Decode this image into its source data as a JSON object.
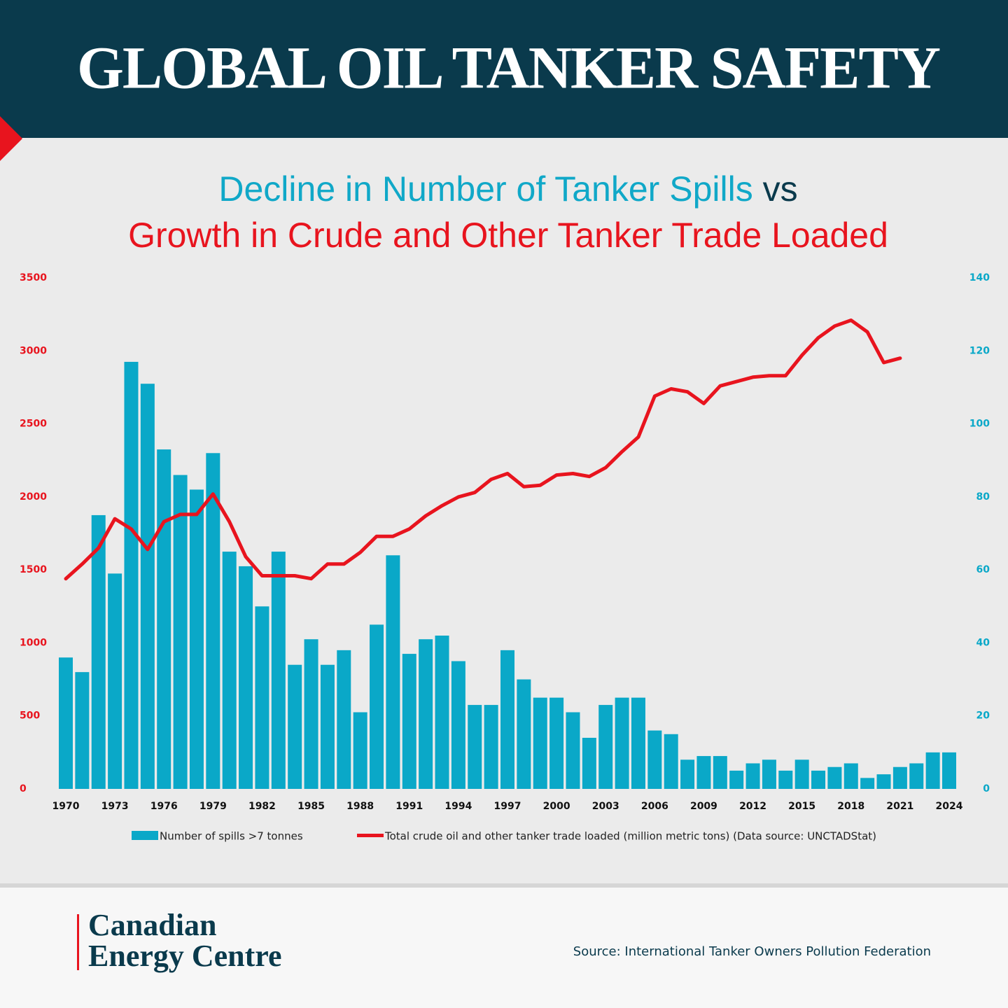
{
  "chart_data": {
    "type": "bar",
    "title": "GLOBAL OIL TANKER SAFETY",
    "subtitle": {
      "line1": [
        "Decline in Number of Tanker Spills",
        "vs"
      ],
      "line2": "Growth in Crude and Other Tanker Trade Loaded"
    },
    "categories": [
      "1970",
      null,
      null,
      "1973",
      null,
      null,
      "1976",
      null,
      null,
      "1979",
      null,
      null,
      "1982",
      null,
      null,
      "1985",
      null,
      null,
      "1988",
      null,
      null,
      "1991",
      null,
      null,
      "1994",
      null,
      null,
      "1997",
      null,
      null,
      "2000",
      null,
      null,
      "2003",
      null,
      null,
      "2006",
      null,
      null,
      "2009",
      null,
      null,
      "2012",
      null,
      null,
      "2015",
      null,
      null,
      "2018",
      null,
      null,
      "2021",
      null,
      null,
      "2024"
    ],
    "series": [
      {
        "name": "Number of spills >7 tonnes",
        "type": "bar",
        "axis": "y2",
        "color": "#0aa8c8",
        "values": [
          36,
          32,
          75,
          59,
          117,
          111,
          93,
          86,
          82,
          92,
          65,
          61,
          50,
          65,
          34,
          41,
          34,
          38,
          21,
          45,
          64,
          37,
          41,
          42,
          35,
          23,
          23,
          38,
          30,
          25,
          25,
          21,
          14,
          23,
          25,
          25,
          16,
          15,
          8,
          9,
          9,
          5,
          7,
          8,
          5,
          8,
          5,
          6,
          7,
          3,
          4,
          6,
          7,
          10,
          10
        ]
      },
      {
        "name": "Total crude oil and other tanker trade loaded (million metric tons) (Data source: UNCTADStat)",
        "type": "line",
        "color": "#e8141e",
        "values": [
          1440,
          1540,
          1650,
          1850,
          1780,
          1640,
          1830,
          1880,
          1880,
          2020,
          1830,
          1590,
          1460,
          1460,
          1460,
          1440,
          1540,
          1540,
          1620,
          1730,
          1730,
          1780,
          1870,
          1940,
          2000,
          2030,
          2120,
          2160,
          2070,
          2080,
          2150,
          2160,
          2140,
          2200,
          2310,
          2410,
          2690,
          2740,
          2720,
          2640,
          2760,
          2790,
          2820,
          2830,
          2830,
          2970,
          3090,
          3170,
          3210,
          3130,
          2920,
          2950,
          null,
          null,
          null
        ]
      }
    ],
    "ylim": [
      0,
      3500
    ],
    "yticks": [
      0,
      500,
      1000,
      1500,
      2000,
      2500,
      3000,
      3500
    ],
    "ytick_color": "#e8141e",
    "y2lim": [
      0,
      140
    ],
    "y2ticks": [
      0,
      20,
      40,
      60,
      80,
      100,
      120,
      140
    ],
    "y2tick_color": "#0aa8c8",
    "legend": "bottom"
  },
  "footer": {
    "brand": [
      "Canadian",
      "Energy Centre"
    ],
    "source": "Source: International Tanker Owners Pollution Federation"
  }
}
